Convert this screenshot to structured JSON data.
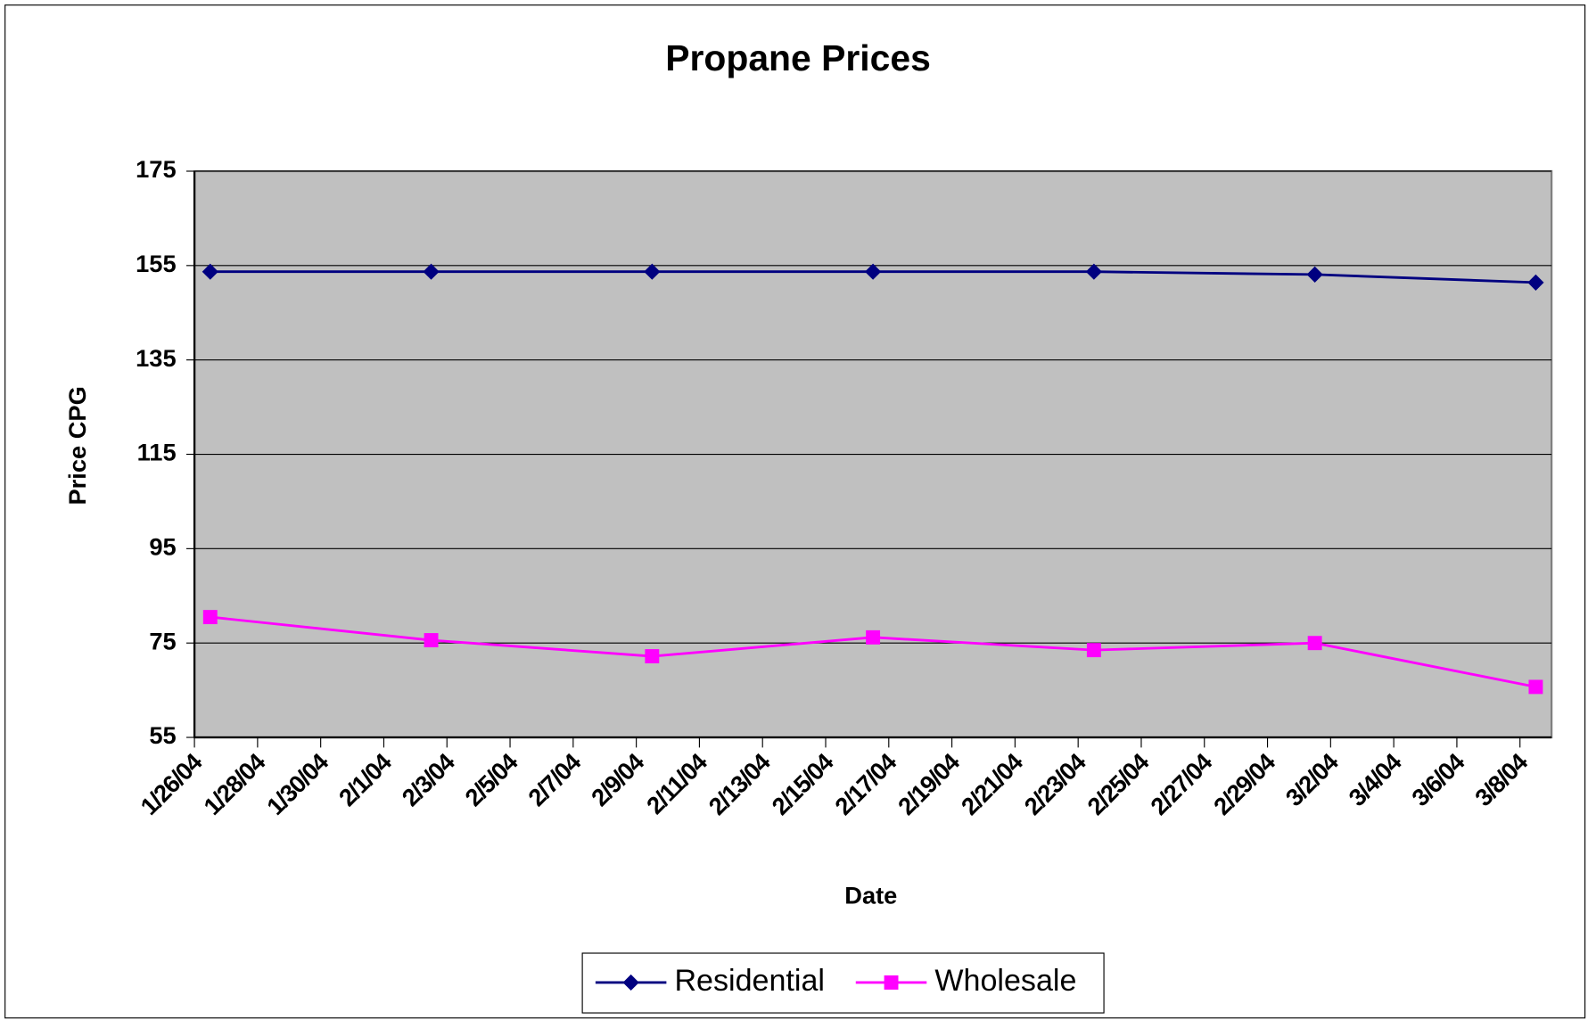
{
  "chart_data": {
    "type": "line",
    "title": "Propane Prices",
    "x_label": "Date",
    "y_label": "Price CPG",
    "x": [
      "1/26/04",
      "2/2/04",
      "2/9/04",
      "2/16/04",
      "2/23/04",
      "3/1/04",
      "3/8/04"
    ],
    "series": [
      {
        "name": "Residential",
        "color": "#000080",
        "marker": "diamond",
        "values": [
          153.7,
          153.7,
          153.7,
          153.7,
          153.7,
          153.1,
          151.4
        ]
      },
      {
        "name": "Wholesale",
        "color": "#ff00ff",
        "marker": "square",
        "values": [
          80.5,
          75.6,
          72.2,
          76.2,
          73.5,
          75.0,
          65.7
        ]
      }
    ],
    "xlim": [
      "1/26/04",
      "3/9/04"
    ],
    "xticks": [
      "1/26/04",
      "1/28/04",
      "1/30/04",
      "2/1/04",
      "2/3/04",
      "2/5/04",
      "2/7/04",
      "2/9/04",
      "2/11/04",
      "2/13/04",
      "2/15/04",
      "2/17/04",
      "2/19/04",
      "2/21/04",
      "2/23/04",
      "2/25/04",
      "2/27/04",
      "2/29/04",
      "3/2/04",
      "3/4/04",
      "3/6/04",
      "3/8/04"
    ],
    "ylim": [
      55,
      175
    ],
    "yticks": [
      55,
      75,
      95,
      115,
      135,
      155,
      175
    ],
    "grid": true,
    "legend": "bottom"
  }
}
